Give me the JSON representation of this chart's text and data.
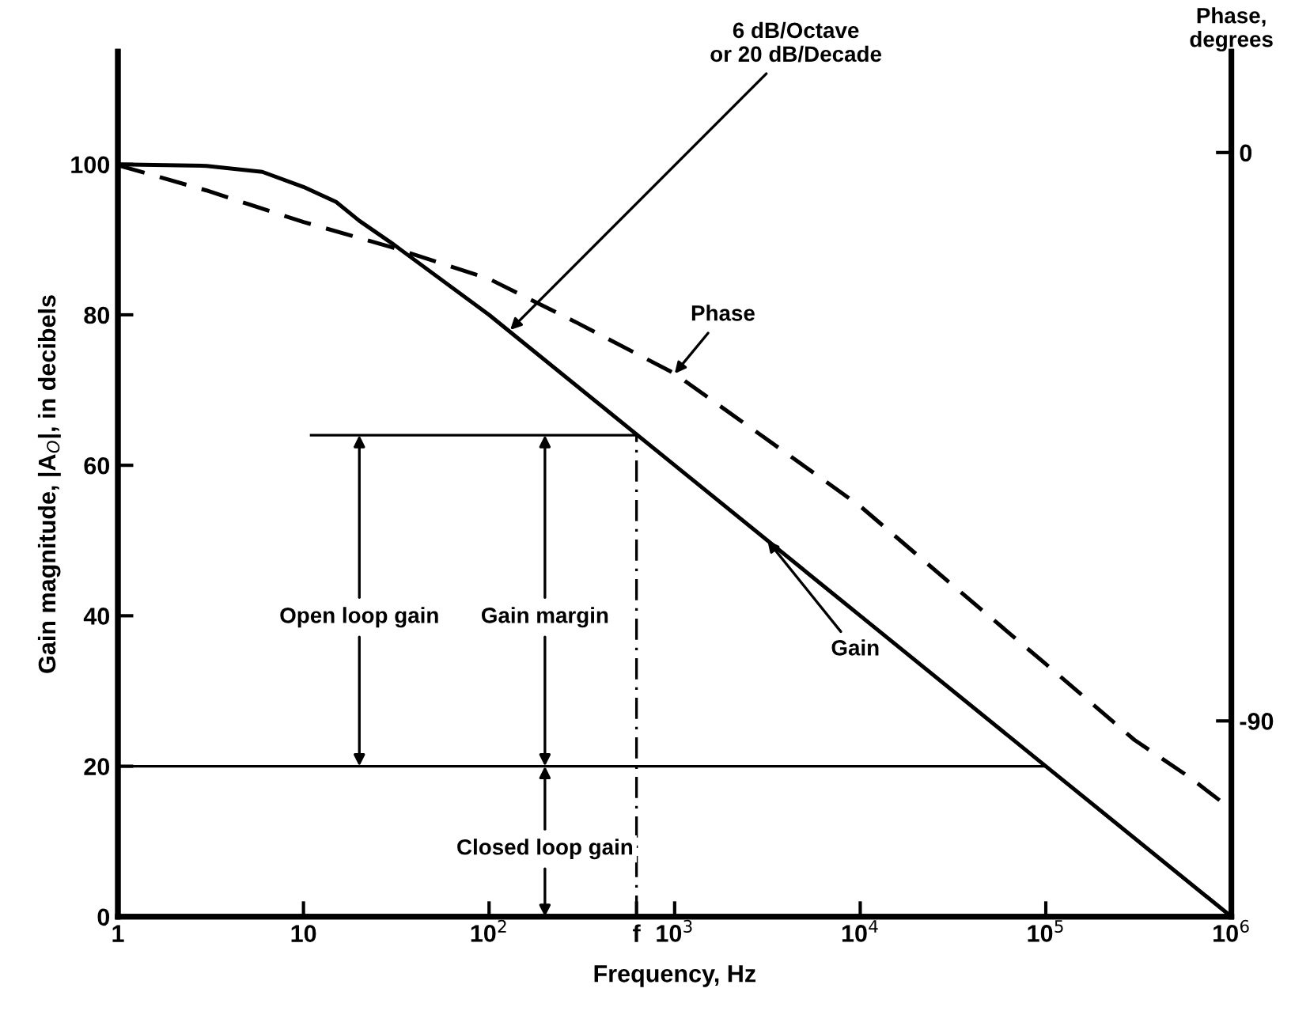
{
  "chart_data": {
    "type": "line",
    "xlabel": "Frequency, Hz",
    "ylabel": "Gain magnitude, |A$_{O}$|, in decibels",
    "y2label": "Phase,\ndegrees",
    "log": "x",
    "xlim": [
      1,
      1000000
    ],
    "ylim": [
      0,
      115
    ],
    "y2lim": [
      -121,
      16
    ],
    "xticks": [
      1,
      10,
      {
        "value": 100,
        "label": "10$^{2}$"
      },
      {
        "value": 623,
        "label": "f"
      },
      {
        "value": 1000,
        "label": "10$^{3}$"
      },
      {
        "value": 10000,
        "label": "10$^{4}$"
      },
      {
        "value": 100000,
        "label": "10$^{5}$"
      },
      {
        "value": 1000000,
        "label": "10$^{6}$"
      }
    ],
    "yticks": [
      0,
      20,
      40,
      60,
      80,
      100
    ],
    "y2ticks": [
      0,
      -90
    ],
    "grid": false,
    "legend": false,
    "marker": "none",
    "series": [
      {
        "name": "Gain",
        "color": "#000000",
        "line_style": "solid",
        "x": [
          1,
          3,
          6,
          10,
          15,
          20,
          30,
          100,
          1000,
          10000,
          100000,
          1000000
        ],
        "values": [
          100,
          99.8,
          99,
          97,
          95,
          92.5,
          89.5,
          80,
          60,
          40,
          20,
          0
        ]
      },
      {
        "name": "Phase",
        "color": "#000000",
        "line_style": "dashed",
        "axis": "y2",
        "x": [
          1,
          3,
          10,
          30,
          100,
          300,
          1000,
          3000,
          10000,
          30000,
          100000,
          300000,
          600000,
          1000000
        ],
        "values": [
          -2,
          -6,
          -11,
          -15,
          -20,
          -27,
          -35,
          -45,
          -56,
          -68,
          -81,
          -93,
          -99,
          -104
        ]
      }
    ],
    "ref_lines": [
      {
        "axis": "x",
        "value": 623,
        "line_style": "dashed",
        "color": "#000000"
      },
      {
        "axis": "y",
        "value": 20,
        "line_style": "solid",
        "color": "#000000"
      },
      {
        "axis": "y",
        "value": 64,
        "line_style": "solid",
        "color": "#000000"
      }
    ],
    "annotations": [
      {
        "text": "6 dB/Octave\nor 20 dB/Decade",
        "x": 130,
        "y": 78
      },
      {
        "text": "Open loop gain",
        "x": 20,
        "y": 64
      },
      {
        "text": "Gain margin",
        "x": 200,
        "y": 64
      },
      {
        "text": "Closed loop gain",
        "x": 200,
        "y": 20
      }
    ]
  }
}
